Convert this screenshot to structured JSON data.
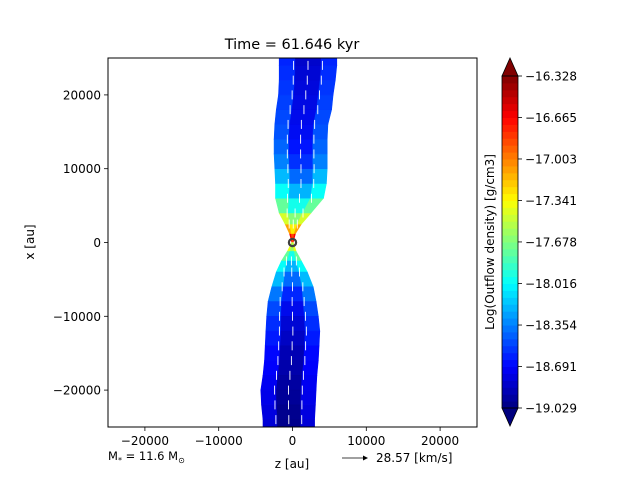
{
  "chart_data": {
    "type": "heatmap",
    "title": "Time = 61.646 kyr",
    "xlabel": "z [au]",
    "ylabel": "x [au]",
    "xlim": [
      -25000,
      25000
    ],
    "ylim": [
      -25000,
      25000
    ],
    "x_ticks": [
      -20000,
      -10000,
      0,
      10000,
      20000
    ],
    "x_tick_labels": [
      "−20000",
      "−10000",
      "0",
      "10000",
      "20000"
    ],
    "y_ticks": [
      -20000,
      -10000,
      0,
      10000,
      20000
    ],
    "y_tick_labels": [
      "−20000",
      "−10000",
      "0",
      "10000",
      "20000"
    ],
    "colorbar": {
      "label": "Log(Outflow density) [g/cm3]",
      "min": -19.029,
      "max": -16.328,
      "extend": "both",
      "colormap": "jet",
      "ticks": [
        -19.029,
        -18.691,
        -18.354,
        -18.016,
        -17.678,
        -17.341,
        -17.003,
        -16.665,
        -16.328
      ],
      "tick_labels": [
        "−19.029",
        "−18.691",
        "−18.354",
        "−18.016",
        "−17.678",
        "−17.341",
        "−17.003",
        "−16.665",
        "−16.328"
      ]
    },
    "star_marker": {
      "z": 0,
      "x": 0
    },
    "annotations": {
      "mass_label": "M",
      "mass_subscript": "*",
      "mass_value": " = 11.6 M",
      "mass_unit_symbol": "⊙",
      "velocity_key_label": "28.57 [km/s]"
    },
    "outflow_lobes": [
      {
        "name": "north",
        "profile_x": [
          0,
          1200,
          2500,
          4000,
          6000,
          8000,
          10000,
          12000,
          14000,
          16000,
          18000,
          20000,
          22000,
          24000,
          25000
        ],
        "left_z": [
          -100,
          -400,
          -1000,
          -1800,
          -2300,
          -2300,
          -2400,
          -2500,
          -2500,
          -2400,
          -2200,
          -1900,
          -1800,
          -1800,
          -1800
        ],
        "right_z": [
          100,
          400,
          1200,
          2500,
          4200,
          4600,
          4700,
          4700,
          4700,
          4800,
          5300,
          5500,
          5800,
          6000,
          6000
        ],
        "log_density": [
          -16.4,
          -16.9,
          -17.3,
          -17.6,
          -17.9,
          -18.1,
          -18.3,
          -18.4,
          -18.45,
          -18.5,
          -18.5,
          -18.55,
          -18.55,
          -18.6,
          -18.6
        ]
      },
      {
        "name": "south",
        "profile_x": [
          0,
          -1200,
          -2500,
          -4000,
          -6000,
          -8000,
          -10000,
          -12000,
          -14000,
          -16000,
          -18000,
          -20000,
          -22000,
          -24000,
          -25000
        ],
        "left_z": [
          -100,
          -700,
          -1500,
          -2200,
          -2800,
          -3300,
          -3500,
          -3600,
          -3700,
          -3800,
          -4000,
          -4300,
          -4200,
          -4000,
          -4000
        ],
        "right_z": [
          100,
          500,
          1200,
          2000,
          2800,
          3200,
          3500,
          3700,
          3600,
          3500,
          3300,
          3200,
          3100,
          3000,
          3000
        ],
        "log_density": [
          -17.2,
          -17.6,
          -17.9,
          -18.1,
          -18.3,
          -18.45,
          -18.55,
          -18.6,
          -18.65,
          -18.7,
          -18.7,
          -18.75,
          -18.75,
          -18.8,
          -18.8
        ]
      }
    ]
  }
}
